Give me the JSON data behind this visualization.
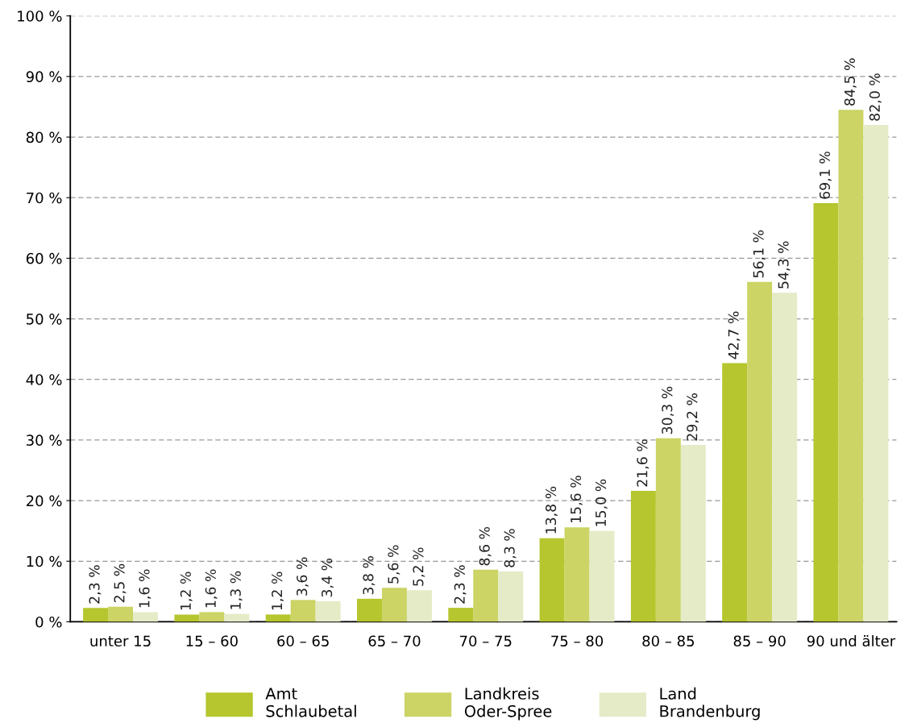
{
  "chart_data": {
    "type": "bar",
    "categories": [
      "unter 15",
      "15 – 60",
      "60 – 65",
      "65 – 70",
      "70 – 75",
      "75 – 80",
      "80 – 85",
      "85 – 90",
      "90 und älter"
    ],
    "series": [
      {
        "name": "Amt\nSchlaubetal",
        "color": "#b5c62e",
        "values": [
          2.3,
          1.2,
          1.2,
          3.8,
          2.3,
          13.8,
          21.6,
          42.7,
          69.1
        ],
        "value_labels": [
          "2,3 %",
          "1,2 %",
          "1,2 %",
          "3,8 %",
          "2,3 %",
          "13,8 %",
          "21,6 %",
          "42,7 %",
          "69,1 %"
        ]
      },
      {
        "name": "Landkreis\nOder-Spree",
        "color": "#cbd464",
        "values": [
          2.5,
          1.6,
          3.6,
          5.6,
          8.6,
          15.6,
          30.3,
          56.1,
          84.5
        ],
        "value_labels": [
          "2,5 %",
          "1,6 %",
          "3,6 %",
          "5,6 %",
          "8,6 %",
          "15,6 %",
          "30,3 %",
          "56,1 %",
          "84,5 %"
        ]
      },
      {
        "name": "Land\nBrandenburg",
        "color": "#e5ebc6",
        "values": [
          1.6,
          1.3,
          3.4,
          5.2,
          8.3,
          15.0,
          29.2,
          54.3,
          82.0
        ],
        "value_labels": [
          "1,6 %",
          "1,3 %",
          "3,4 %",
          "5,2 %",
          "8,3 %",
          "15,0 %",
          "29,2 %",
          "54,3 %",
          "82,0 %"
        ]
      }
    ],
    "ylim": [
      0,
      100
    ],
    "yticks": [
      {
        "value": 0,
        "label": "0 %"
      },
      {
        "value": 10,
        "label": "10 %"
      },
      {
        "value": 20,
        "label": "20 %"
      },
      {
        "value": 30,
        "label": "30 %"
      },
      {
        "value": 40,
        "label": "40 %"
      },
      {
        "value": 50,
        "label": "50 %"
      },
      {
        "value": 60,
        "label": "60 %"
      },
      {
        "value": 70,
        "label": "70 %"
      },
      {
        "value": 80,
        "label": "80 %"
      },
      {
        "value": 90,
        "label": "90 %"
      },
      {
        "value": 100,
        "label": "100 %"
      }
    ],
    "grid": "y",
    "legend": "bottom"
  }
}
